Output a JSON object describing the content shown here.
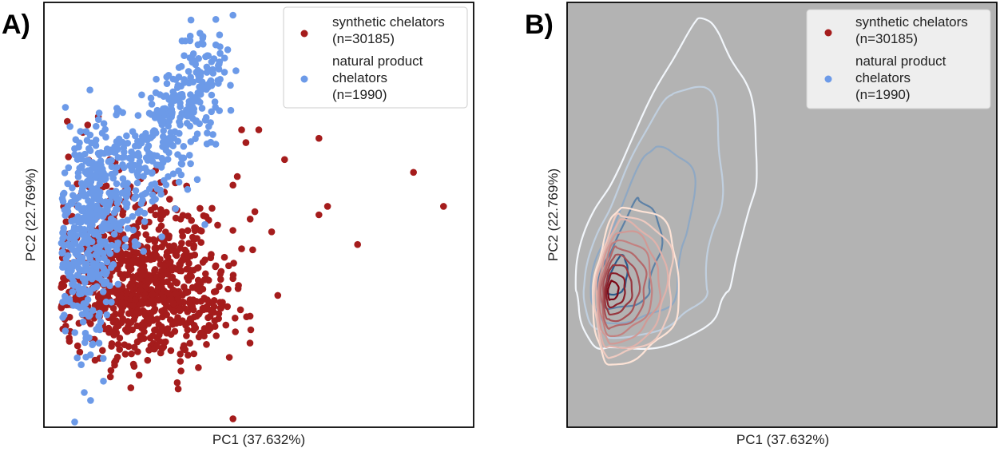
{
  "panels": [
    {
      "letter": "A)",
      "xlabel": "PC1 (37.632%)",
      "ylabel": "PC2 (22.769%)",
      "legend": [
        {
          "lines": [
            "synthetic chelators",
            "(n=30185)"
          ],
          "color": "#a51c1c"
        },
        {
          "lines": [
            "natural product",
            "chelators",
            "(n=1990)"
          ],
          "color": "#6c9ae8"
        }
      ]
    },
    {
      "letter": "B)",
      "xlabel": "PC1 (37.632%)",
      "ylabel": "PC2 (22.769%)",
      "legend": [
        {
          "lines": [
            "synthetic chelators",
            "(n=30185)"
          ],
          "color": "#a51c1c"
        },
        {
          "lines": [
            "natural product",
            "chelators",
            "(n=1990)"
          ],
          "color": "#6c9ae8"
        }
      ]
    }
  ],
  "chart_data": [
    {
      "type": "scatter",
      "xlabel": "PC1 (37.632%)",
      "ylabel": "PC2 (22.769%)",
      "xlim": [
        0,
        100
      ],
      "ylim": [
        0,
        100
      ],
      "legend_position": "top-right",
      "series": [
        {
          "name": "synthetic chelators (n=30185)",
          "color": "#a51c1c",
          "outliers": [
            [
              86,
              60
            ],
            [
              93,
              52
            ],
            [
              64,
              68
            ],
            [
              48,
              49
            ],
            [
              53,
              46
            ],
            [
              46,
              42
            ],
            [
              64,
              50
            ],
            [
              66,
              52
            ],
            [
              73,
              43
            ],
            [
              56,
              63
            ],
            [
              50,
              70
            ],
            [
              45,
              59
            ],
            [
              44,
              57
            ],
            [
              46,
              70
            ],
            [
              47,
              67
            ],
            [
              44,
              35
            ],
            [
              40,
              32
            ],
            [
              38,
              30
            ],
            [
              38,
              28
            ],
            [
              33,
              24
            ],
            [
              44,
              2
            ],
            [
              43,
              38
            ],
            [
              40,
              38
            ],
            [
              42,
              40
            ],
            [
              34,
              30
            ],
            [
              36,
              33
            ],
            [
              33,
              32
            ]
          ],
          "clusters": [
            {
              "center": [
                23,
                32
              ],
              "spread": [
                9,
                8
              ],
              "count": 520
            },
            {
              "center": [
                13,
                42
              ],
              "spread": [
                5,
                10
              ],
              "count": 200
            },
            {
              "center": [
                34,
                28
              ],
              "spread": [
                6,
                6
              ],
              "count": 100
            },
            {
              "center": [
                30,
                48
              ],
              "spread": [
                6,
                6
              ],
              "count": 60
            }
          ]
        },
        {
          "name": "natural product chelators (n=1990)",
          "color": "#6c9ae8",
          "points": [
            [
              44,
              97
            ],
            [
              40,
              96
            ],
            [
              37,
              92
            ],
            [
              40,
              90
            ],
            [
              41,
              88
            ],
            [
              39,
              86
            ],
            [
              34,
              91
            ]
          ],
          "clusters": [
            {
              "center": [
                10,
                45
              ],
              "spread": [
                3.5,
                14
              ],
              "count": 320
            },
            {
              "center": [
                16,
                55
              ],
              "spread": [
                5,
                8
              ],
              "count": 180
            },
            {
              "center": [
                25,
                65
              ],
              "spread": [
                6,
                6
              ],
              "count": 120
            },
            {
              "center": [
                32,
                75
              ],
              "spread": [
                4,
                5
              ],
              "count": 110
            },
            {
              "center": [
                37,
                84
              ],
              "spread": [
                3,
                5
              ],
              "count": 70
            }
          ]
        }
      ]
    },
    {
      "type": "contour",
      "xlabel": "PC1 (37.632%)",
      "ylabel": "PC2 (22.769%)",
      "xlim": [
        0,
        100
      ],
      "ylim": [
        0,
        100
      ],
      "legend_position": "top-right",
      "background": "#b3b3b3",
      "series": [
        {
          "name": "natural product chelators (n=1990)",
          "colormap": "blues",
          "levels": 5,
          "center": [
            10,
            33
          ],
          "outer_extent": {
            "xmin": 2,
            "xmax": 38,
            "ymin": 18,
            "ymax": 93
          }
        },
        {
          "name": "synthetic chelators (n=30185)",
          "colormap": "reds",
          "levels": 10,
          "center": [
            10,
            32
          ],
          "outer_extent": {
            "xmin": 6,
            "xmax": 26,
            "ymin": 15,
            "ymax": 52
          }
        }
      ]
    }
  ]
}
